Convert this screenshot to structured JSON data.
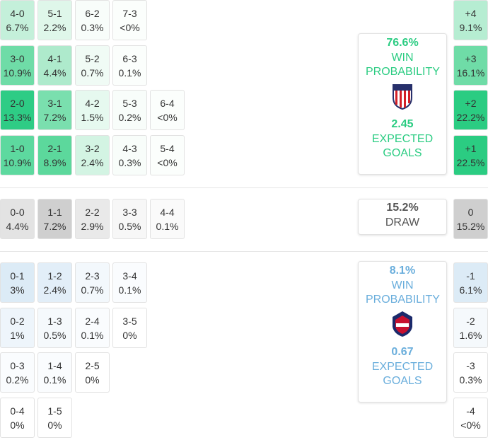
{
  "home_grid": {
    "rows": [
      [
        {
          "score": "4-0",
          "prob": "6.7%",
          "color": "#c4f0da"
        },
        {
          "score": "5-1",
          "prob": "2.2%",
          "color": "#dff7ea"
        },
        {
          "score": "6-2",
          "prob": "0.3%",
          "color": "#f8fdfa"
        },
        {
          "score": "7-3",
          "prob": "<0%",
          "color": "#fbfefc"
        }
      ],
      [
        {
          "score": "3-0",
          "prob": "10.9%",
          "color": "#6fdca7"
        },
        {
          "score": "4-1",
          "prob": "4.4%",
          "color": "#aeeacc"
        },
        {
          "score": "5-2",
          "prob": "0.7%",
          "color": "#f0fbf5"
        },
        {
          "score": "6-3",
          "prob": "0.1%",
          "color": "#fbfefc"
        }
      ],
      [
        {
          "score": "2-0",
          "prob": "13.3%",
          "color": "#2ecc85"
        },
        {
          "score": "3-1",
          "prob": "7.2%",
          "color": "#7adfae"
        },
        {
          "score": "4-2",
          "prob": "1.5%",
          "color": "#e6f9ef"
        },
        {
          "score": "5-3",
          "prob": "0.2%",
          "color": "#f8fdfa"
        },
        {
          "score": "6-4",
          "prob": "<0%",
          "color": "#fbfefc"
        }
      ],
      [
        {
          "score": "1-0",
          "prob": "10.9%",
          "color": "#5dd99f"
        },
        {
          "score": "2-1",
          "prob": "8.9%",
          "color": "#5cd89c"
        },
        {
          "score": "3-2",
          "prob": "2.4%",
          "color": "#d3f4e3"
        },
        {
          "score": "4-3",
          "prob": "0.3%",
          "color": "#f8fdfa"
        },
        {
          "score": "5-4",
          "prob": "<0%",
          "color": "#fbfefc"
        }
      ]
    ]
  },
  "draw_row": [
    {
      "score": "0-0",
      "prob": "4.4%",
      "color": "#e3e3e3"
    },
    {
      "score": "1-1",
      "prob": "7.2%",
      "color": "#cfcfcf"
    },
    {
      "score": "2-2",
      "prob": "2.9%",
      "color": "#e9e9e9"
    },
    {
      "score": "3-3",
      "prob": "0.5%",
      "color": "#f7f7f7"
    },
    {
      "score": "4-4",
      "prob": "0.1%",
      "color": "#fafafa"
    }
  ],
  "away_grid": {
    "rows": [
      [
        {
          "score": "0-1",
          "prob": "3%",
          "color": "#dcebf6"
        },
        {
          "score": "1-2",
          "prob": "2.4%",
          "color": "#e2eef8"
        },
        {
          "score": "2-3",
          "prob": "0.7%",
          "color": "#f3f8fc"
        },
        {
          "score": "3-4",
          "prob": "0.1%",
          "color": "#fafcfe"
        }
      ],
      [
        {
          "score": "0-2",
          "prob": "1%",
          "color": "#eef5fb"
        },
        {
          "score": "1-3",
          "prob": "0.5%",
          "color": "#f5f9fc"
        },
        {
          "score": "2-4",
          "prob": "0.1%",
          "color": "#fafcfe"
        },
        {
          "score": "3-5",
          "prob": "0%",
          "color": "#ffffff"
        }
      ],
      [
        {
          "score": "0-3",
          "prob": "0.2%",
          "color": "#fafcfe"
        },
        {
          "score": "1-4",
          "prob": "0.1%",
          "color": "#fafcfe"
        },
        {
          "score": "2-5",
          "prob": "0%",
          "color": "#ffffff"
        }
      ],
      [
        {
          "score": "0-4",
          "prob": "0%",
          "color": "#ffffff"
        },
        {
          "score": "1-5",
          "prob": "0%",
          "color": "#ffffff"
        }
      ]
    ]
  },
  "margins": {
    "home": [
      {
        "diff": "+4",
        "prob": "9.1%",
        "color": "#b6edd2"
      },
      {
        "diff": "+3",
        "prob": "16.1%",
        "color": "#6fdca7"
      },
      {
        "diff": "+2",
        "prob": "22.2%",
        "color": "#2bcc82"
      },
      {
        "diff": "+1",
        "prob": "22.5%",
        "color": "#2bcc82"
      }
    ],
    "draw": [
      {
        "diff": "0",
        "prob": "15.2%",
        "color": "#cfcfcf"
      }
    ],
    "away": [
      {
        "diff": "-1",
        "prob": "6.1%",
        "color": "#dcebf6"
      },
      {
        "diff": "-2",
        "prob": "1.6%",
        "color": "#f5f9fc"
      },
      {
        "diff": "-3",
        "prob": "0.3%",
        "color": "#ffffff"
      },
      {
        "diff": "-4",
        "prob": "<0%",
        "color": "#ffffff"
      }
    ]
  },
  "home_summary": {
    "win_probability": "76.6%",
    "win_label": "WIN PROBABILITY",
    "expected_goals": "2.45",
    "goals_label": "EXPECTED GOALS"
  },
  "draw_summary": {
    "probability": "15.2%",
    "label": "DRAW"
  },
  "away_summary": {
    "win_probability": "8.1%",
    "win_label": "WIN PROBABILITY",
    "expected_goals": "0.67",
    "goals_label": "EXPECTED GOALS"
  }
}
